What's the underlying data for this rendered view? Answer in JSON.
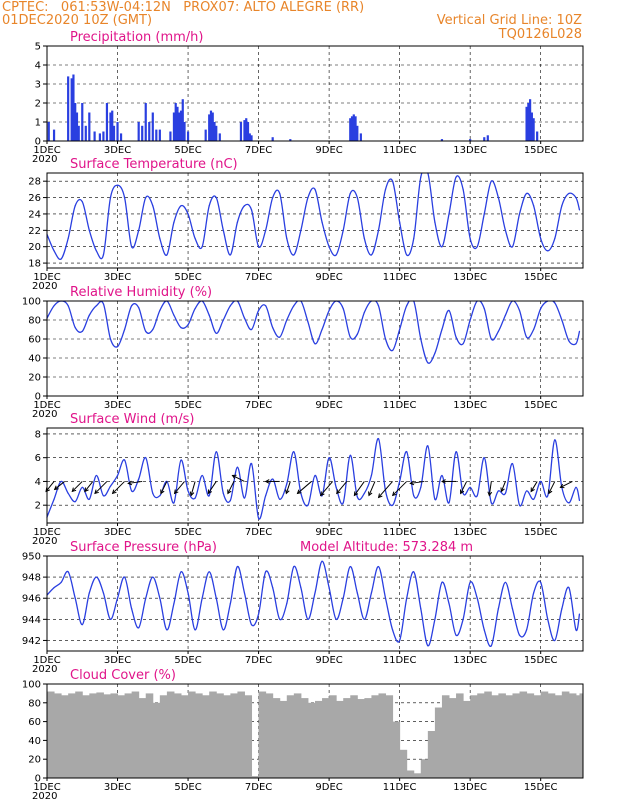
{
  "header": {
    "line1_left": "CPTEC:   061:53W-04:12N   PROX07: ALTO ALEGRE (RR)",
    "line2_left": "01DEC2020 10Z (GMT)",
    "line2_right": "Vertical Grid Line: 10Z",
    "line3_right": "TQ0126L028"
  },
  "colors": {
    "header": "#e8852a",
    "title": "#e0158a",
    "line": "#2a3fe0",
    "bar": "#2a3fe0",
    "cloud": "#a8a8a8"
  },
  "x_axis": {
    "tick_labels": [
      "1DEC",
      "3DEC",
      "5DEC",
      "7DEC",
      "9DEC",
      "11DEC",
      "13DEC",
      "15DEC"
    ],
    "tick_days": [
      1,
      3,
      5,
      7,
      9,
      11,
      13,
      15
    ],
    "year_label": "2020",
    "range_days": [
      1,
      16.2
    ]
  },
  "chart_data": [
    {
      "type": "bar",
      "title": "Precipitation (mm/h)",
      "ylim": [
        0,
        5
      ],
      "yticks": [
        0,
        1,
        2,
        3,
        4,
        5
      ],
      "grid": "dashed",
      "x": [
        1.05,
        1.2,
        1.6,
        1.7,
        1.75,
        1.8,
        1.85,
        1.9,
        2.0,
        2.1,
        2.2,
        2.35,
        2.5,
        2.6,
        2.7,
        2.8,
        2.85,
        2.9,
        3.0,
        3.1,
        3.6,
        3.7,
        3.8,
        3.9,
        4.0,
        4.1,
        4.2,
        4.5,
        4.6,
        4.65,
        4.7,
        4.75,
        4.8,
        4.85,
        4.9,
        5.0,
        5.5,
        5.6,
        5.65,
        5.7,
        5.75,
        5.8,
        5.9,
        6.5,
        6.6,
        6.65,
        6.7,
        6.75,
        6.8,
        7.4,
        7.9,
        9.6,
        9.65,
        9.7,
        9.75,
        9.8,
        9.9,
        12.2,
        13.0,
        13.4,
        13.5,
        14.6,
        14.65,
        14.7,
        14.75,
        14.8,
        14.9
      ],
      "values": [
        1.0,
        0.6,
        3.4,
        3.3,
        3.5,
        2.0,
        1.5,
        0.8,
        2.0,
        0.8,
        1.5,
        0.5,
        0.4,
        0.5,
        2.0,
        1.5,
        1.6,
        0.8,
        1.0,
        0.4,
        1.0,
        0.8,
        2.0,
        1.0,
        1.5,
        0.6,
        0.6,
        0.5,
        1.5,
        2.0,
        1.8,
        1.5,
        1.6,
        2.2,
        1.0,
        0.5,
        0.6,
        1.4,
        1.6,
        1.5,
        1.0,
        0.8,
        0.4,
        1.0,
        1.1,
        1.2,
        1.0,
        0.4,
        0.3,
        0.2,
        0.1,
        1.2,
        1.3,
        1.4,
        1.3,
        0.8,
        0.4,
        0.1,
        0.1,
        0.2,
        0.3,
        1.8,
        2.0,
        2.2,
        1.5,
        1.2,
        0.5
      ]
    },
    {
      "type": "line",
      "title": "Surface Temperature (nC)",
      "ylim": [
        17.4,
        29
      ],
      "yticks": [
        18,
        20,
        22,
        24,
        26,
        28
      ],
      "grid": "dashed",
      "x": [
        1.0,
        1.2,
        1.4,
        1.6,
        1.8,
        2.0,
        2.2,
        2.4,
        2.6,
        2.8,
        3.0,
        3.2,
        3.4,
        3.6,
        3.8,
        4.0,
        4.2,
        4.4,
        4.6,
        4.8,
        5.0,
        5.2,
        5.4,
        5.6,
        5.8,
        6.0,
        6.2,
        6.4,
        6.6,
        6.8,
        7.0,
        7.2,
        7.4,
        7.6,
        7.8,
        8.0,
        8.2,
        8.4,
        8.6,
        8.8,
        9.0,
        9.2,
        9.4,
        9.6,
        9.8,
        10.0,
        10.2,
        10.4,
        10.6,
        10.8,
        11.0,
        11.2,
        11.4,
        11.6,
        11.8,
        12.0,
        12.2,
        12.4,
        12.6,
        12.8,
        13.0,
        13.2,
        13.4,
        13.6,
        13.8,
        14.0,
        14.2,
        14.4,
        14.6,
        14.8,
        15.0,
        15.2,
        15.4,
        15.6,
        15.8,
        16.0,
        16.1
      ],
      "values": [
        21.5,
        19.5,
        18.5,
        21,
        25,
        25.5,
        22,
        19.5,
        19,
        26,
        27.5,
        26,
        20,
        22,
        26,
        25,
        21,
        19,
        23,
        25,
        24,
        21,
        20,
        25,
        26,
        22,
        19,
        23,
        25,
        24.5,
        20,
        22,
        26,
        26.5,
        21,
        19,
        22,
        26,
        27,
        23,
        20,
        19,
        22,
        26.5,
        26,
        21,
        19,
        22,
        27,
        28,
        23,
        19,
        21,
        28.5,
        29,
        23,
        20,
        24,
        28.5,
        27,
        21,
        20,
        24,
        28,
        26,
        22,
        20,
        24,
        26.5,
        25,
        21,
        19.5,
        21,
        25,
        26.5,
        26,
        24.5
      ]
    },
    {
      "type": "line",
      "title": "Relative Humidity (%)",
      "ylim": [
        0,
        100
      ],
      "yticks": [
        0,
        20,
        40,
        60,
        80,
        100
      ],
      "grid": "dashed",
      "x": [
        1.0,
        1.2,
        1.4,
        1.6,
        1.8,
        2.0,
        2.2,
        2.4,
        2.6,
        2.8,
        3.0,
        3.2,
        3.4,
        3.6,
        3.8,
        4.0,
        4.2,
        4.4,
        4.6,
        4.8,
        5.0,
        5.2,
        5.4,
        5.6,
        5.8,
        6.0,
        6.2,
        6.4,
        6.6,
        6.8,
        7.0,
        7.2,
        7.4,
        7.6,
        7.8,
        8.0,
        8.2,
        8.4,
        8.6,
        8.8,
        9.0,
        9.2,
        9.4,
        9.6,
        9.8,
        10.0,
        10.2,
        10.4,
        10.6,
        10.8,
        11.0,
        11.2,
        11.4,
        11.6,
        11.8,
        12.0,
        12.2,
        12.4,
        12.6,
        12.8,
        13.0,
        13.2,
        13.4,
        13.6,
        13.8,
        14.0,
        14.2,
        14.4,
        14.6,
        14.8,
        15.0,
        15.2,
        15.4,
        15.6,
        15.8,
        16.0,
        16.1
      ],
      "values": [
        82,
        95,
        100,
        95,
        72,
        68,
        85,
        95,
        97,
        60,
        52,
        70,
        95,
        93,
        68,
        70,
        90,
        100,
        85,
        72,
        75,
        92,
        100,
        85,
        66,
        80,
        95,
        100,
        82,
        70,
        90,
        95,
        72,
        62,
        80,
        95,
        100,
        78,
        55,
        70,
        90,
        100,
        92,
        62,
        65,
        88,
        100,
        95,
        60,
        48,
        70,
        95,
        100,
        60,
        35,
        45,
        70,
        90,
        62,
        55,
        80,
        100,
        92,
        60,
        68,
        85,
        100,
        90,
        62,
        70,
        92,
        100,
        98,
        80,
        58,
        55,
        68
      ]
    },
    {
      "type": "line",
      "title": "Surface Wind (m/s)",
      "ylim": [
        0.5,
        8.5
      ],
      "yticks": [
        2,
        4,
        6,
        8
      ],
      "grid": "dashed",
      "x": [
        1.0,
        1.2,
        1.4,
        1.6,
        1.8,
        2.0,
        2.2,
        2.4,
        2.6,
        2.8,
        3.0,
        3.2,
        3.4,
        3.6,
        3.8,
        4.0,
        4.2,
        4.4,
        4.6,
        4.8,
        5.0,
        5.2,
        5.4,
        5.6,
        5.8,
        6.0,
        6.2,
        6.4,
        6.6,
        6.8,
        7.0,
        7.2,
        7.4,
        7.6,
        7.8,
        8.0,
        8.2,
        8.4,
        8.6,
        8.8,
        9.0,
        9.2,
        9.4,
        9.6,
        9.8,
        10.0,
        10.2,
        10.4,
        10.6,
        10.8,
        11.0,
        11.2,
        11.4,
        11.6,
        11.8,
        12.0,
        12.2,
        12.4,
        12.6,
        12.8,
        13.0,
        13.2,
        13.4,
        13.6,
        13.8,
        14.0,
        14.2,
        14.4,
        14.6,
        14.8,
        15.0,
        15.2,
        15.4,
        15.6,
        15.8,
        16.0,
        16.1
      ],
      "values": [
        1.0,
        2.5,
        4.0,
        3.0,
        2.3,
        3.5,
        2.5,
        4.5,
        2.8,
        3.6,
        4.5,
        5.8,
        3.2,
        4.2,
        6.0,
        3.0,
        2.8,
        4.0,
        2.2,
        5.8,
        3.2,
        2.6,
        4.5,
        2.8,
        6.5,
        3.0,
        2.4,
        5.2,
        2.6,
        5.5,
        0.9,
        2.8,
        4.2,
        2.5,
        3.8,
        6.5,
        3.0,
        2.0,
        4.5,
        2.8,
        6.0,
        3.5,
        2.2,
        6.2,
        2.7,
        3.0,
        4.5,
        7.6,
        3.2,
        2.0,
        4.0,
        6.5,
        2.8,
        3.5,
        7.0,
        2.5,
        4.5,
        2.2,
        6.5,
        3.0,
        3.5,
        2.8,
        6.0,
        2.2,
        3.2,
        3.0,
        5.5,
        2.0,
        3.2,
        2.5,
        4.0,
        2.8,
        7.5,
        3.5,
        2.2,
        3.5,
        2.4
      ],
      "barbs": [
        {
          "day": 1.2,
          "dx": -8,
          "dy": 10
        },
        {
          "day": 1.5,
          "dx": -10,
          "dy": 8
        },
        {
          "day": 2.0,
          "dx": -10,
          "dy": 10
        },
        {
          "day": 2.3,
          "dx": -8,
          "dy": 10
        },
        {
          "day": 2.7,
          "dx": -12,
          "dy": 12
        },
        {
          "day": 3.2,
          "dx": -12,
          "dy": 12
        },
        {
          "day": 3.7,
          "dx": -14,
          "dy": 2
        },
        {
          "day": 4.4,
          "dx": -6,
          "dy": 12
        },
        {
          "day": 4.9,
          "dx": -10,
          "dy": 12
        },
        {
          "day": 5.2,
          "dx": -4,
          "dy": 14
        },
        {
          "day": 5.8,
          "dx": -8,
          "dy": 12
        },
        {
          "day": 6.3,
          "dx": -6,
          "dy": 12
        },
        {
          "day": 6.6,
          "dx": -12,
          "dy": -6
        },
        {
          "day": 7.6,
          "dx": -14,
          "dy": 0
        },
        {
          "day": 7.9,
          "dx": -4,
          "dy": 12
        },
        {
          "day": 8.5,
          "dx": -14,
          "dy": 12
        },
        {
          "day": 9.1,
          "dx": -12,
          "dy": 14
        },
        {
          "day": 9.5,
          "dx": -10,
          "dy": 12
        },
        {
          "day": 10.0,
          "dx": -10,
          "dy": 14
        },
        {
          "day": 10.3,
          "dx": -6,
          "dy": 14
        },
        {
          "day": 10.8,
          "dx": -14,
          "dy": 16
        },
        {
          "day": 11.2,
          "dx": -14,
          "dy": 14
        },
        {
          "day": 11.7,
          "dx": -14,
          "dy": 2
        },
        {
          "day": 12.6,
          "dx": -14,
          "dy": 0
        },
        {
          "day": 12.9,
          "dx": -6,
          "dy": 12
        },
        {
          "day": 13.6,
          "dx": -2,
          "dy": 14
        },
        {
          "day": 14.0,
          "dx": -4,
          "dy": 10
        },
        {
          "day": 14.9,
          "dx": -6,
          "dy": 10
        },
        {
          "day": 15.4,
          "dx": -6,
          "dy": 12
        },
        {
          "day": 15.9,
          "dx": -12,
          "dy": 6
        }
      ]
    },
    {
      "type": "line",
      "title": "Surface Pressure (hPa)",
      "annotation": "Model Altitude: 573.284  m",
      "ylim": [
        941,
        950
      ],
      "yticks": [
        942,
        944,
        946,
        948,
        950
      ],
      "grid": "dashed",
      "x": [
        1.0,
        1.2,
        1.4,
        1.6,
        1.8,
        2.0,
        2.2,
        2.4,
        2.6,
        2.8,
        3.0,
        3.2,
        3.4,
        3.6,
        3.8,
        4.0,
        4.2,
        4.4,
        4.6,
        4.8,
        5.0,
        5.2,
        5.4,
        5.6,
        5.8,
        6.0,
        6.2,
        6.4,
        6.6,
        6.8,
        7.0,
        7.2,
        7.4,
        7.6,
        7.8,
        8.0,
        8.2,
        8.4,
        8.6,
        8.8,
        9.0,
        9.2,
        9.4,
        9.6,
        9.8,
        10.0,
        10.2,
        10.4,
        10.6,
        10.8,
        11.0,
        11.2,
        11.4,
        11.6,
        11.8,
        12.0,
        12.2,
        12.4,
        12.6,
        12.8,
        13.0,
        13.2,
        13.4,
        13.6,
        13.8,
        14.0,
        14.2,
        14.4,
        14.6,
        14.8,
        15.0,
        15.2,
        15.4,
        15.6,
        15.8,
        16.0,
        16.1
      ],
      "values": [
        946.3,
        947.0,
        947.5,
        948.5,
        946.0,
        943.5,
        946.5,
        948.0,
        946.5,
        944.0,
        946.0,
        948.0,
        945.0,
        943.2,
        946.0,
        948.0,
        946.0,
        943.0,
        945.5,
        948.5,
        946.5,
        943.0,
        946.0,
        948.5,
        946.0,
        943.0,
        945.5,
        949.0,
        946.5,
        943.5,
        944.5,
        948.5,
        947.0,
        944.0,
        945.5,
        949.0,
        947.0,
        944.0,
        946.5,
        949.5,
        947.0,
        944.0,
        946.0,
        949.0,
        946.5,
        944.0,
        946.5,
        949.0,
        946.0,
        943.0,
        942.0,
        946.0,
        948.5,
        945.0,
        941.5,
        944.0,
        947.5,
        945.5,
        942.5,
        944.0,
        947.5,
        946.0,
        943.0,
        941.5,
        945.0,
        947.5,
        945.0,
        942.5,
        943.0,
        946.5,
        947.5,
        944.0,
        942.0,
        945.0,
        947.0,
        943.0,
        944.5
      ]
    },
    {
      "type": "bar",
      "title": "Cloud Cover (%)",
      "ylim": [
        0,
        100
      ],
      "yticks": [
        0,
        20,
        40,
        60,
        80,
        100
      ],
      "grid": "dashed",
      "x": [
        1.0,
        1.2,
        1.4,
        1.6,
        1.8,
        2.0,
        2.2,
        2.4,
        2.6,
        2.8,
        3.0,
        3.2,
        3.4,
        3.6,
        3.8,
        4.0,
        4.2,
        4.4,
        4.6,
        4.8,
        5.0,
        5.2,
        5.4,
        5.6,
        5.8,
        6.0,
        6.2,
        6.4,
        6.6,
        6.8,
        7.0,
        7.2,
        7.4,
        7.6,
        7.8,
        8.0,
        8.2,
        8.4,
        8.6,
        8.8,
        9.0,
        9.2,
        9.4,
        9.6,
        9.8,
        10.0,
        10.2,
        10.4,
        10.6,
        10.8,
        11.0,
        11.2,
        11.4,
        11.6,
        11.8,
        12.0,
        12.2,
        12.4,
        12.6,
        12.8,
        13.0,
        13.2,
        13.4,
        13.6,
        13.8,
        14.0,
        14.2,
        14.4,
        14.6,
        14.8,
        15.0,
        15.2,
        15.4,
        15.6,
        15.8,
        16.0,
        16.1
      ],
      "values": [
        92,
        90,
        88,
        90,
        92,
        88,
        90,
        91,
        89,
        90,
        88,
        90,
        92,
        85,
        90,
        80,
        88,
        92,
        90,
        88,
        92,
        90,
        88,
        92,
        90,
        88,
        90,
        92,
        88,
        2,
        92,
        90,
        85,
        82,
        88,
        90,
        85,
        80,
        82,
        85,
        88,
        82,
        85,
        88,
        84,
        85,
        88,
        90,
        88,
        60,
        30,
        8,
        5,
        20,
        50,
        75,
        88,
        85,
        90,
        82,
        88,
        90,
        92,
        88,
        90,
        88,
        90,
        92,
        90,
        88,
        92,
        90,
        88,
        92,
        90,
        88,
        90
      ]
    }
  ]
}
